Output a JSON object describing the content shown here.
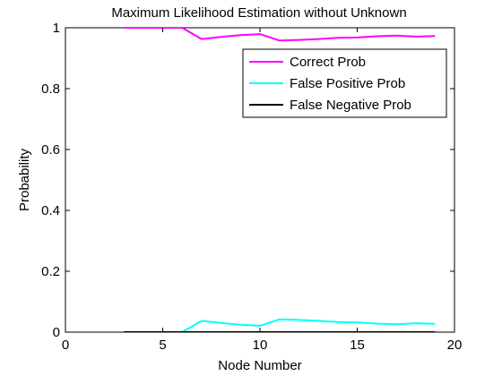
{
  "chart_data": {
    "type": "line",
    "title": "Maximum Likelihood Estimation without Unknown",
    "xlabel": "Node Number",
    "ylabel": "Probability",
    "xlim": [
      0,
      20
    ],
    "ylim": [
      0,
      1
    ],
    "xticks": [
      0,
      5,
      10,
      15,
      20
    ],
    "xtick_labels": [
      "0",
      "5",
      "10",
      "15",
      "20"
    ],
    "yticks": [
      0,
      0.2,
      0.4,
      0.6,
      0.8,
      1
    ],
    "ytick_labels": [
      "0",
      "0.2",
      "0.4",
      "0.6",
      "0.8",
      "1"
    ],
    "grid": false,
    "legend_position": "top-right",
    "x": [
      3,
      4,
      5,
      6,
      7,
      8,
      9,
      10,
      11,
      12,
      13,
      14,
      15,
      16,
      17,
      18,
      19
    ],
    "series": [
      {
        "name": "Correct Prob",
        "color": "#ff00ff",
        "values": [
          1,
          1,
          1,
          1,
          0.963,
          0.97,
          0.976,
          0.979,
          0.958,
          0.96,
          0.963,
          0.967,
          0.968,
          0.972,
          0.974,
          0.971,
          0.973
        ]
      },
      {
        "name": "False Positive Prob",
        "color": "#00ffff",
        "values": [
          0,
          0,
          0,
          0,
          0.037,
          0.03,
          0.024,
          0.021,
          0.042,
          0.04,
          0.037,
          0.033,
          0.032,
          0.028,
          0.026,
          0.029,
          0.027
        ]
      },
      {
        "name": "False Negative Prob",
        "color": "#000000",
        "values": [
          0,
          0,
          0,
          0,
          0,
          0,
          0,
          0,
          0,
          0,
          0,
          0,
          0,
          0,
          0,
          0,
          0
        ]
      }
    ]
  }
}
